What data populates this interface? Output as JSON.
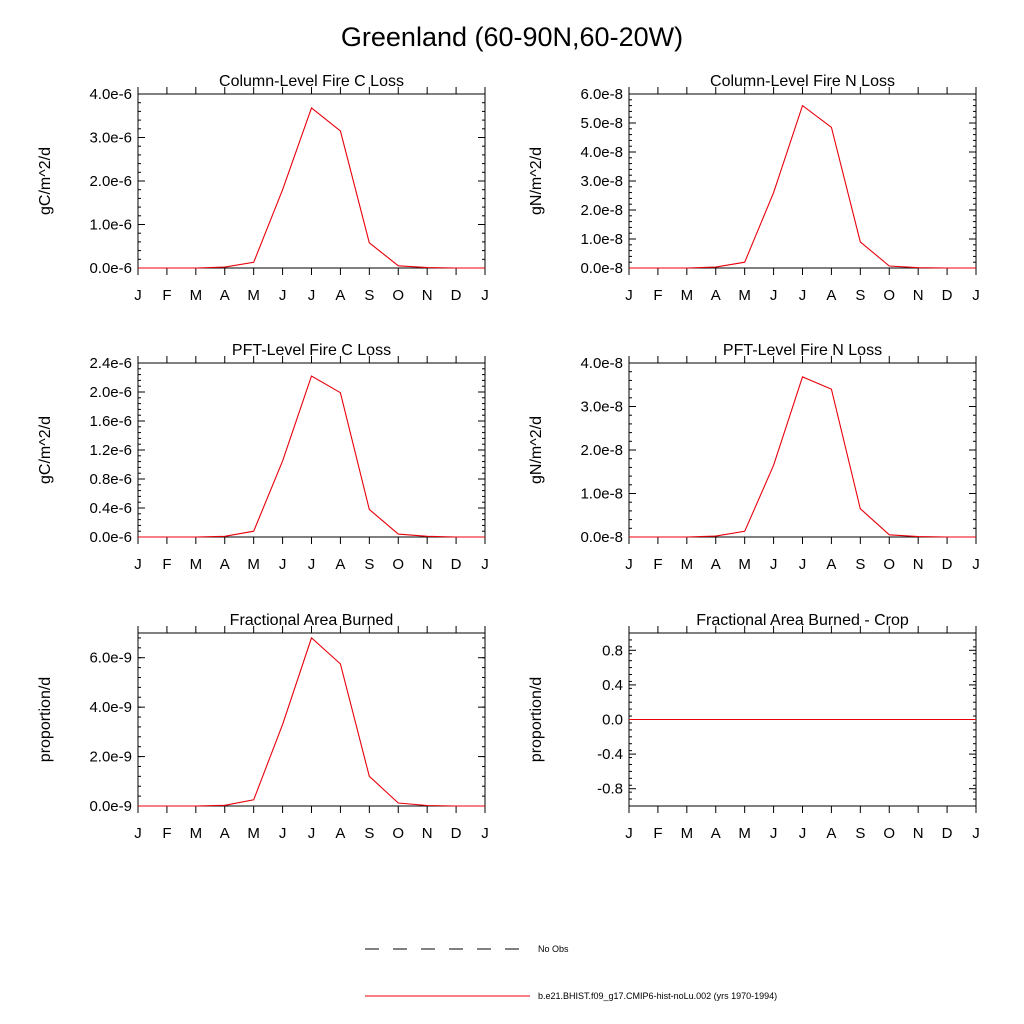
{
  "title": "Greenland (60-90N,60-20W)",
  "months": [
    "J",
    "F",
    "M",
    "A",
    "M",
    "J",
    "J",
    "A",
    "S",
    "O",
    "N",
    "D",
    "J"
  ],
  "colors": {
    "model": "#e8000b",
    "frame": "#000000",
    "obs": "#000000"
  },
  "legend": {
    "obs_label": "No Obs",
    "model_label": "b.e21.BHIST.f09_g17.CMIP6-hist-noLu.002 (yrs 1970-1994)"
  },
  "chart_data": [
    {
      "type": "line",
      "title": "Column-Level Fire C Loss",
      "ylabel": "gC/m^2/d",
      "ylim": [
        0,
        4e-06
      ],
      "yticks": [
        0,
        1e-06,
        2e-06,
        3e-06,
        4e-06
      ],
      "ytick_labels": [
        "0.0e-6",
        "1.0e-6",
        "2.0e-6",
        "3.0e-6",
        "4.0e-6"
      ],
      "x": [
        "J",
        "F",
        "M",
        "A",
        "M",
        "J",
        "J",
        "A",
        "S",
        "O",
        "N",
        "D",
        "J"
      ],
      "series": [
        {
          "values": [
            0,
            0,
            0,
            2e-08,
            1.3e-07,
            1.8e-06,
            3.68e-06,
            3.15e-06,
            5.8e-07,
            5e-08,
            1e-08,
            0,
            0
          ]
        }
      ]
    },
    {
      "type": "line",
      "title": "Column-Level Fire N Loss",
      "ylabel": "gN/m^2/d",
      "ylim": [
        0,
        6e-08
      ],
      "yticks": [
        0,
        1e-08,
        2e-08,
        3e-08,
        4e-08,
        5e-08,
        6e-08
      ],
      "ytick_labels": [
        "0.0e-8",
        "1.0e-8",
        "2.0e-8",
        "3.0e-8",
        "4.0e-8",
        "5.0e-8",
        "6.0e-8"
      ],
      "x": [
        "J",
        "F",
        "M",
        "A",
        "M",
        "J",
        "J",
        "A",
        "S",
        "O",
        "N",
        "D",
        "J"
      ],
      "series": [
        {
          "values": [
            0,
            0,
            0,
            3e-10,
            2e-09,
            2.6e-08,
            5.6e-08,
            4.85e-08,
            9e-09,
            7e-10,
            1e-10,
            0,
            0
          ]
        }
      ]
    },
    {
      "type": "line",
      "title": "PFT-Level Fire C Loss",
      "ylabel": "gC/m^2/d",
      "ylim": [
        0,
        2.4e-06
      ],
      "yticks": [
        0,
        4e-07,
        8e-07,
        1.2e-06,
        1.6e-06,
        2e-06,
        2.4e-06
      ],
      "ytick_labels": [
        "0.0e-6",
        "0.4e-6",
        "0.8e-6",
        "1.2e-6",
        "1.6e-6",
        "2.0e-6",
        "2.4e-6"
      ],
      "x": [
        "J",
        "F",
        "M",
        "A",
        "M",
        "J",
        "J",
        "A",
        "S",
        "O",
        "N",
        "D",
        "J"
      ],
      "series": [
        {
          "values": [
            0,
            0,
            0,
            1e-08,
            8e-08,
            1.05e-06,
            2.22e-06,
            1.99e-06,
            3.8e-07,
            4e-08,
            1e-08,
            0,
            0
          ]
        }
      ]
    },
    {
      "type": "line",
      "title": "PFT-Level Fire N Loss",
      "ylabel": "gN/m^2/d",
      "ylim": [
        0,
        4e-08
      ],
      "yticks": [
        0,
        1e-08,
        2e-08,
        3e-08,
        4e-08
      ],
      "ytick_labels": [
        "0.0e-8",
        "1.0e-8",
        "2.0e-8",
        "3.0e-8",
        "4.0e-8"
      ],
      "x": [
        "J",
        "F",
        "M",
        "A",
        "M",
        "J",
        "J",
        "A",
        "S",
        "O",
        "N",
        "D",
        "J"
      ],
      "series": [
        {
          "values": [
            0,
            0,
            0,
            2e-10,
            1.3e-09,
            1.65e-08,
            3.68e-08,
            3.4e-08,
            6.5e-09,
            5e-10,
            1e-10,
            0,
            0
          ]
        }
      ]
    },
    {
      "type": "line",
      "title": "Fractional Area Burned",
      "ylabel": "proportion/d",
      "ylim": [
        0,
        7e-09
      ],
      "yticks": [
        0,
        2e-09,
        4e-09,
        6e-09
      ],
      "ytick_labels": [
        "0.0e-9",
        "2.0e-9",
        "4.0e-9",
        "6.0e-9"
      ],
      "x": [
        "J",
        "F",
        "M",
        "A",
        "M",
        "J",
        "J",
        "A",
        "S",
        "O",
        "N",
        "D",
        "J"
      ],
      "series": [
        {
          "values": [
            0,
            0,
            0,
            3e-11,
            2.5e-10,
            3.3e-09,
            6.8e-09,
            5.75e-09,
            1.2e-09,
            1.2e-10,
            2e-11,
            0,
            0
          ]
        }
      ]
    },
    {
      "type": "line",
      "title": "Fractional Area Burned - Crop",
      "ylabel": "proportion/d",
      "ylim": [
        -1.0,
        1.0
      ],
      "yticks": [
        -0.8,
        -0.4,
        0.0,
        0.4,
        0.8
      ],
      "ytick_labels": [
        "-0.8",
        "-0.4",
        "0.0",
        "0.4",
        "0.8"
      ],
      "x": [
        "J",
        "F",
        "M",
        "A",
        "M",
        "J",
        "J",
        "A",
        "S",
        "O",
        "N",
        "D",
        "J"
      ],
      "series": [
        {
          "values": [
            0,
            0,
            0,
            0,
            0,
            0,
            0,
            0,
            0,
            0,
            0,
            0,
            0
          ]
        }
      ]
    }
  ]
}
